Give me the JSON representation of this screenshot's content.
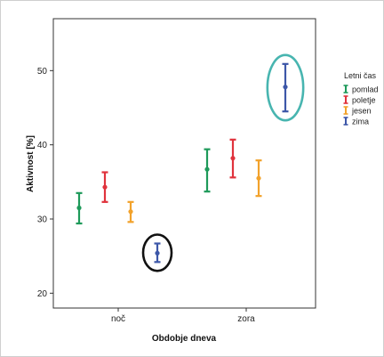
{
  "chart_data": {
    "type": "scatter",
    "subtype": "error-bar",
    "categories": [
      "noč",
      "zora"
    ],
    "xlabel": "Obdobje dneva",
    "ylabel": "Aktivnost [%]",
    "ylim": [
      18,
      57
    ],
    "yticks": [
      20,
      30,
      40,
      50
    ],
    "grid": false,
    "legend": {
      "title": "Letni čas",
      "position": "right",
      "entries": [
        "pomlad",
        "poletje",
        "jesen",
        "zima"
      ]
    },
    "series": [
      {
        "name": "pomlad",
        "color": "#1e9a5a",
        "means": [
          31.5,
          36.7
        ],
        "lower": [
          29.4,
          33.7
        ],
        "upper": [
          33.5,
          39.4
        ]
      },
      {
        "name": "poletje",
        "color": "#e0333d",
        "means": [
          34.3,
          38.2
        ],
        "lower": [
          32.3,
          35.6
        ],
        "upper": [
          36.3,
          40.7
        ]
      },
      {
        "name": "jesen",
        "color": "#f2a22b",
        "means": [
          31.0,
          35.5
        ],
        "lower": [
          29.6,
          33.1
        ],
        "upper": [
          32.3,
          37.9
        ]
      },
      {
        "name": "zima",
        "color": "#3d57a8",
        "means": [
          25.4,
          47.8
        ],
        "lower": [
          24.2,
          44.5
        ],
        "upper": [
          26.7,
          50.9
        ]
      }
    ],
    "annotations": [
      {
        "type": "ellipse",
        "category": "noč",
        "series": "zima",
        "color": "#111111"
      },
      {
        "type": "ellipse",
        "category": "zora",
        "series": "zima",
        "color": "#48b5b0"
      }
    ]
  }
}
